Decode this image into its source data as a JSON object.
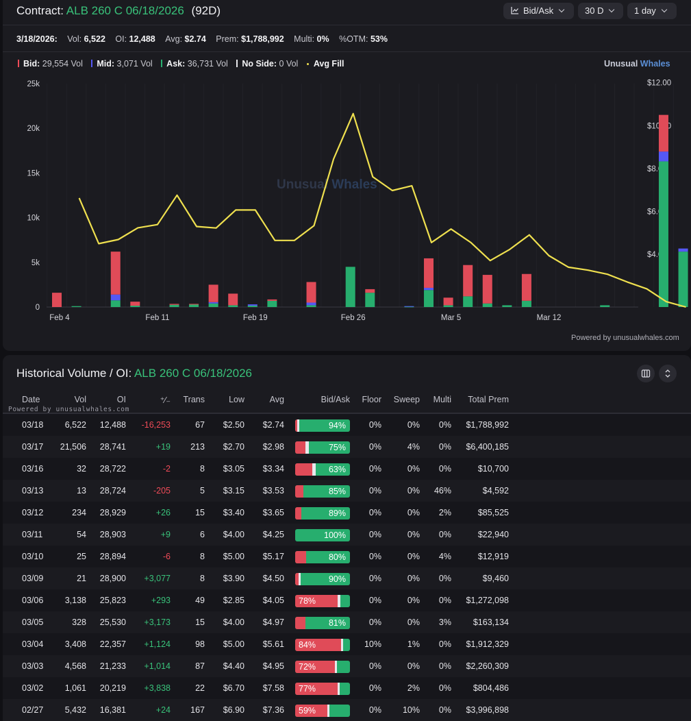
{
  "header": {
    "label": "Contract:",
    "contract": "ALB 260 C 06/18/2026",
    "dte": "(92D)",
    "controls": [
      {
        "label": "Bid/Ask",
        "icon": "chart-line-icon"
      },
      {
        "label": "30 D"
      },
      {
        "label": "1 day"
      }
    ]
  },
  "stats": {
    "date": "3/18/2026:",
    "items": [
      {
        "label": "Vol:",
        "value": "6,522"
      },
      {
        "label": "OI:",
        "value": "12,488"
      },
      {
        "label": "Avg:",
        "value": "$2.74"
      },
      {
        "label": "Prem:",
        "value": "$1,788,992"
      },
      {
        "label": "Multi:",
        "value": "0%"
      },
      {
        "label": "%OTM:",
        "value": "53%"
      }
    ]
  },
  "legend": [
    {
      "label": "Bid:",
      "value": "29,554 Vol",
      "color": "#ef4b58"
    },
    {
      "label": "Mid:",
      "value": "3,071 Vol",
      "color": "#5558f5"
    },
    {
      "label": "Ask:",
      "value": "36,731 Vol",
      "color": "#27ae6e"
    },
    {
      "label": "No Side:",
      "value": "0 Vol",
      "color": "#e8e8ec"
    },
    {
      "label": "Avg Fill",
      "value": "",
      "color": "#efe04f"
    }
  ],
  "brand": {
    "part1": "Unusual",
    "part2": "Whales",
    "watermark1": "Unusual",
    "watermark2": "Whales"
  },
  "chart_data": {
    "type": "bar",
    "y_left": {
      "ticks": [
        "0",
        "5k",
        "10k",
        "15k",
        "20k",
        "25k"
      ],
      "range": [
        0,
        25000
      ]
    },
    "y_right": {
      "ticks": [
        "$4.00",
        "$6.00",
        "$8.00",
        "$10.00",
        "$12.00"
      ],
      "range": [
        1.53,
        11.96
      ]
    },
    "x_ticks": [
      {
        "label": "Feb 4",
        "index": 0
      },
      {
        "label": "Feb 11",
        "index": 5
      },
      {
        "label": "Feb 19",
        "index": 10
      },
      {
        "label": "Feb 26",
        "index": 15
      },
      {
        "label": "Mar 5",
        "index": 20
      },
      {
        "label": "Mar 12",
        "index": 25
      }
    ],
    "days": 30,
    "series": [
      {
        "name": "Ask",
        "values": [
          0,
          100,
          0,
          750,
          150,
          0,
          250,
          300,
          400,
          200,
          150,
          700,
          0,
          200,
          0,
          4500,
          1600,
          0,
          50,
          1900,
          200,
          1200,
          400,
          200,
          700,
          0,
          0,
          0,
          200,
          0,
          0,
          16300,
          6200
        ]
      },
      {
        "name": "Mid",
        "values": [
          0,
          0,
          0,
          650,
          0,
          0,
          0,
          0,
          150,
          0,
          150,
          0,
          0,
          300,
          0,
          0,
          0,
          0,
          50,
          250,
          0,
          0,
          0,
          0,
          0,
          0,
          0,
          0,
          0,
          0,
          0,
          1100,
          350
        ]
      },
      {
        "name": "Bid",
        "values": [
          1600,
          0,
          0,
          4800,
          450,
          0,
          100,
          50,
          1950,
          1300,
          0,
          150,
          0,
          2300,
          0,
          0,
          400,
          0,
          0,
          3300,
          850,
          3500,
          3200,
          0,
          3000,
          0,
          0,
          0,
          0,
          0,
          0,
          4100,
          0
        ]
      },
      {
        "name": "Avg Fill",
        "values": [
          null,
          6.62,
          4.49,
          4.68,
          5.23,
          5.38,
          6.75,
          5.29,
          5.22,
          6.06,
          6.06,
          4.64,
          4.64,
          5.33,
          8.44,
          10.56,
          7.61,
          6.97,
          7.19,
          4.54,
          5.17,
          4.55,
          3.7,
          4.22,
          4.9,
          3.93,
          3.39,
          3.25,
          3.06,
          2.7,
          2.38,
          1.78,
          1.53
        ]
      }
    ]
  },
  "powered": "Powered by unusualwhales.com",
  "table": {
    "title": "Historical Volume / OI:",
    "contract": "ALB 260 C 06/18/2026",
    "powered": "Powered by unusualwhales.com",
    "columns": [
      "Date",
      "Vol",
      "OI",
      "⁺⁄₋",
      "Trans",
      "Low",
      "Avg",
      "Bid/Ask",
      "Floor",
      "Sweep",
      "Multi",
      "Total Prem"
    ],
    "rows": [
      {
        "date": "03/18",
        "vol": "6,522",
        "oi": "12,488",
        "chg": "-16,253",
        "trans": "67",
        "low": "$2.50",
        "avg": "$2.74",
        "bid": 4,
        "mid": 2,
        "ask": 94,
        "pct": "94%",
        "side": "ask",
        "floor": "0%",
        "sweep": "0%",
        "multi": "0%",
        "prem": "$1,788,992"
      },
      {
        "date": "03/17",
        "vol": "21,506",
        "oi": "28,741",
        "chg": "+19",
        "trans": "213",
        "low": "$2.70",
        "avg": "$2.98",
        "bid": 19,
        "mid": 6,
        "ask": 75,
        "pct": "75%",
        "side": "ask",
        "floor": "0%",
        "sweep": "4%",
        "multi": "0%",
        "prem": "$6,400,185"
      },
      {
        "date": "03/16",
        "vol": "32",
        "oi": "28,722",
        "chg": "-2",
        "trans": "8",
        "low": "$3.05",
        "avg": "$3.34",
        "bid": 31,
        "mid": 6,
        "ask": 63,
        "pct": "63%",
        "side": "ask",
        "floor": "0%",
        "sweep": "0%",
        "multi": "0%",
        "prem": "$10,700"
      },
      {
        "date": "03/13",
        "vol": "13",
        "oi": "28,724",
        "chg": "-205",
        "trans": "5",
        "low": "$3.15",
        "avg": "$3.53",
        "bid": 15,
        "mid": 0,
        "ask": 85,
        "pct": "85%",
        "side": "ask",
        "floor": "0%",
        "sweep": "0%",
        "multi": "46%",
        "prem": "$4,592"
      },
      {
        "date": "03/12",
        "vol": "234",
        "oi": "28,929",
        "chg": "+26",
        "trans": "15",
        "low": "$3.40",
        "avg": "$3.65",
        "bid": 11,
        "mid": 0,
        "ask": 89,
        "pct": "89%",
        "side": "ask",
        "floor": "0%",
        "sweep": "0%",
        "multi": "2%",
        "prem": "$85,525"
      },
      {
        "date": "03/11",
        "vol": "54",
        "oi": "28,903",
        "chg": "+9",
        "trans": "6",
        "low": "$4.00",
        "avg": "$4.25",
        "bid": 0,
        "mid": 0,
        "ask": 100,
        "pct": "100%",
        "side": "ask",
        "floor": "0%",
        "sweep": "0%",
        "multi": "0%",
        "prem": "$22,940"
      },
      {
        "date": "03/10",
        "vol": "25",
        "oi": "28,894",
        "chg": "-6",
        "trans": "8",
        "low": "$5.00",
        "avg": "$5.17",
        "bid": 20,
        "mid": 0,
        "ask": 80,
        "pct": "80%",
        "side": "ask",
        "floor": "0%",
        "sweep": "0%",
        "multi": "4%",
        "prem": "$12,919"
      },
      {
        "date": "03/09",
        "vol": "21",
        "oi": "28,900",
        "chg": "+3,077",
        "trans": "8",
        "low": "$3.90",
        "avg": "$4.50",
        "bid": 6,
        "mid": 4,
        "ask": 90,
        "pct": "90%",
        "side": "ask",
        "floor": "0%",
        "sweep": "0%",
        "multi": "0%",
        "prem": "$9,460"
      },
      {
        "date": "03/06",
        "vol": "3,138",
        "oi": "25,823",
        "chg": "+293",
        "trans": "49",
        "low": "$2.85",
        "avg": "$4.05",
        "bid": 78,
        "mid": 4,
        "ask": 18,
        "pct": "78%",
        "side": "bid",
        "floor": "0%",
        "sweep": "0%",
        "multi": "0%",
        "prem": "$1,272,098"
      },
      {
        "date": "03/05",
        "vol": "328",
        "oi": "25,530",
        "chg": "+3,173",
        "trans": "15",
        "low": "$4.00",
        "avg": "$4.97",
        "bid": 19,
        "mid": 0,
        "ask": 81,
        "pct": "81%",
        "side": "ask",
        "floor": "0%",
        "sweep": "0%",
        "multi": "3%",
        "prem": "$163,134"
      },
      {
        "date": "03/04",
        "vol": "3,408",
        "oi": "22,357",
        "chg": "+1,124",
        "trans": "98",
        "low": "$5.00",
        "avg": "$5.61",
        "bid": 84,
        "mid": 4,
        "ask": 12,
        "pct": "84%",
        "side": "bid",
        "floor": "10%",
        "sweep": "1%",
        "multi": "0%",
        "prem": "$1,912,329"
      },
      {
        "date": "03/03",
        "vol": "4,568",
        "oi": "21,233",
        "chg": "+1,014",
        "trans": "87",
        "low": "$4.40",
        "avg": "$4.95",
        "bid": 72,
        "mid": 4,
        "ask": 24,
        "pct": "72%",
        "side": "bid",
        "floor": "0%",
        "sweep": "0%",
        "multi": "0%",
        "prem": "$2,260,309"
      },
      {
        "date": "03/02",
        "vol": "1,061",
        "oi": "20,219",
        "chg": "+3,838",
        "trans": "22",
        "low": "$6.70",
        "avg": "$7.58",
        "bid": 77,
        "mid": 1,
        "ask": 22,
        "pct": "77%",
        "side": "bid",
        "floor": "0%",
        "sweep": "2%",
        "multi": "0%",
        "prem": "$804,486"
      },
      {
        "date": "02/27",
        "vol": "5,432",
        "oi": "16,381",
        "chg": "+24",
        "trans": "167",
        "low": "$6.90",
        "avg": "$7.36",
        "bid": 59,
        "mid": 4,
        "ask": 37,
        "pct": "59%",
        "side": "bid",
        "floor": "0%",
        "sweep": "10%",
        "multi": "0%",
        "prem": "$3,996,898"
      }
    ]
  }
}
